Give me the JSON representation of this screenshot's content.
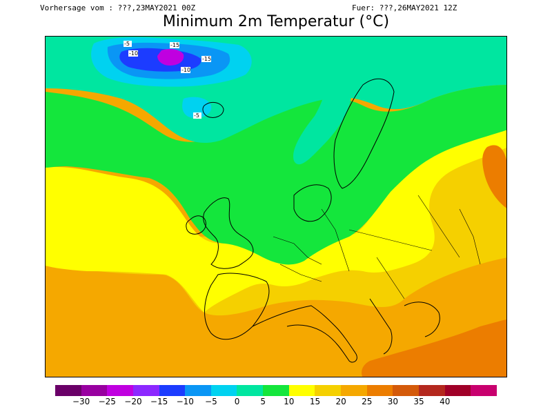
{
  "header": {
    "forecast_from": "Vorhersage vom : ???,23MAY2021 00Z",
    "valid_for": "Fuer: ???,26MAY2021 12Z",
    "title": "Minimum 2m Temperatur (°C)"
  },
  "map": {
    "region": "Europe",
    "contour_labels": [
      "-5",
      "-10",
      "-15",
      "-10",
      "-15",
      "-5"
    ]
  },
  "legend": {
    "colors": [
      "#6a0068",
      "#9800a0",
      "#c000e0",
      "#8c28ff",
      "#1c3cff",
      "#0a96f5",
      "#00d2f0",
      "#00e6a0",
      "#14e63c",
      "#ffff00",
      "#f5d000",
      "#f5a800",
      "#ec7d00",
      "#d45a0a",
      "#b4281e",
      "#a00028",
      "#c8006e"
    ],
    "labels": [
      "−30",
      "−25",
      "−20",
      "−15",
      "−10",
      "−5",
      "0",
      "5",
      "10",
      "15",
      "20",
      "25",
      "30",
      "35",
      "40"
    ]
  }
}
